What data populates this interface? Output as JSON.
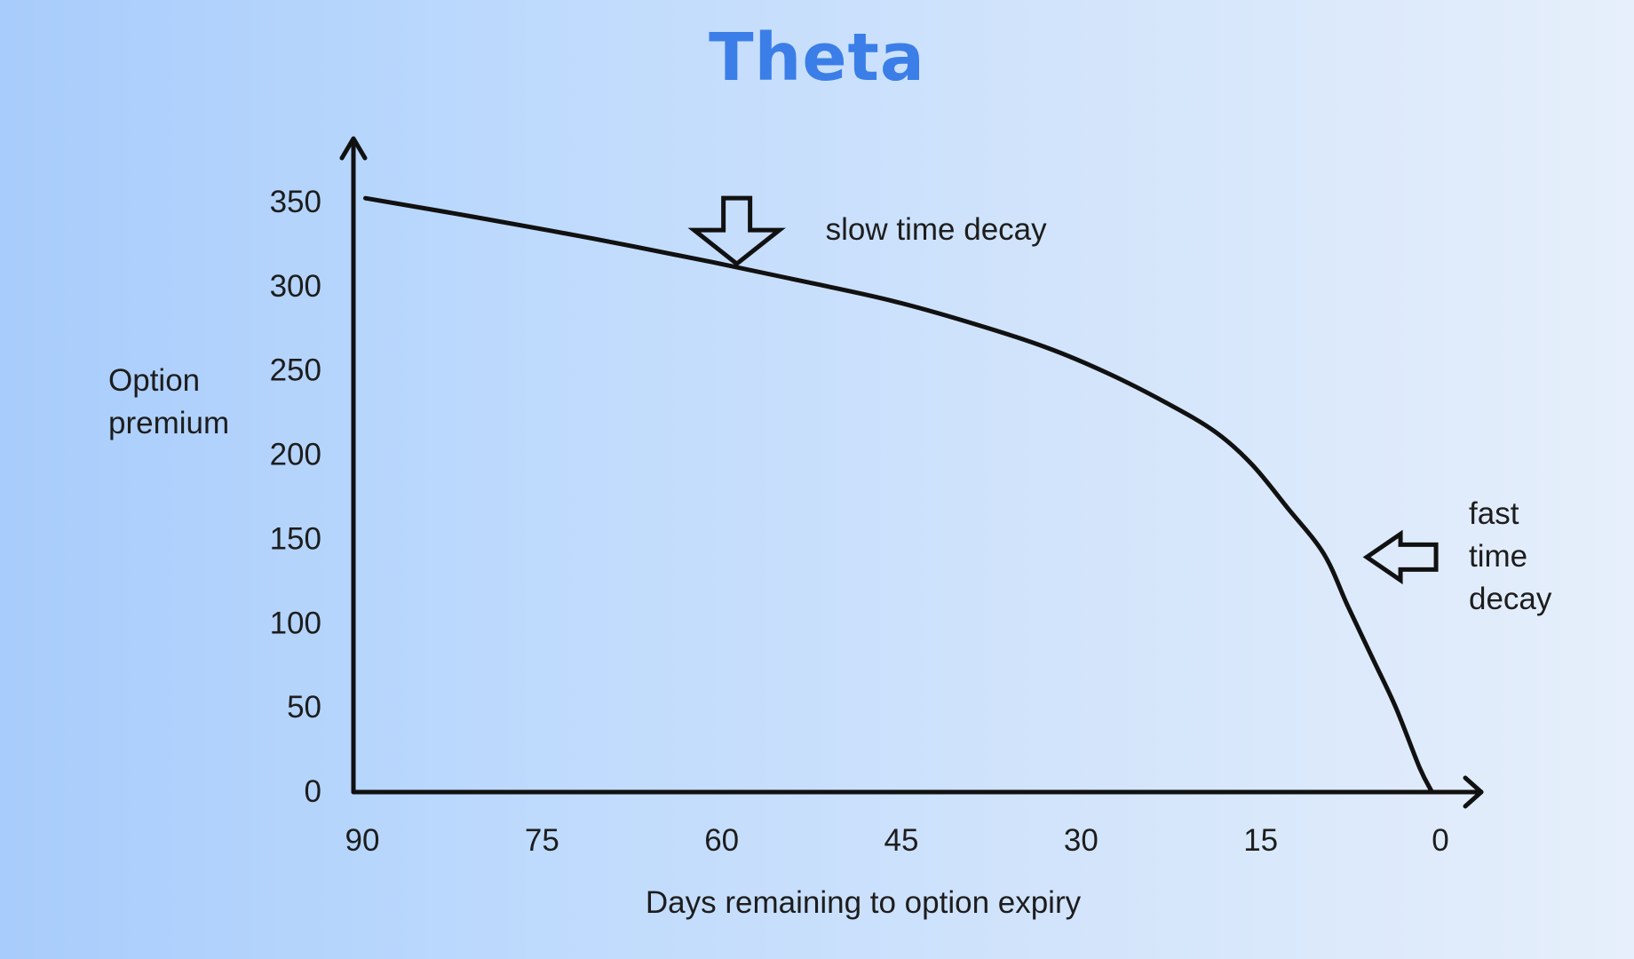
{
  "chart_data": {
    "type": "line",
    "title": "Theta",
    "xlabel": "Days remaining to option expiry",
    "ylabel_lines": [
      "Option",
      "premium"
    ],
    "x_ticks": [
      "90",
      "75",
      "60",
      "45",
      "30",
      "15",
      "0"
    ],
    "y_ticks": [
      "350",
      "300",
      "250",
      "200",
      "150",
      "100",
      "50",
      "0"
    ],
    "xlim": [
      90,
      0
    ],
    "ylim": [
      0,
      350
    ],
    "x_reversed": true,
    "grid": false,
    "legend": "none",
    "series": [
      {
        "x": [
          89,
          80,
          70,
          60,
          52,
          45,
          38,
          32,
          27,
          22,
          18,
          15,
          12,
          9,
          7,
          5,
          3,
          1,
          0
        ],
        "values": [
          352,
          341,
          328,
          314,
          302,
          291,
          277,
          263,
          248,
          230,
          213,
          194,
          168,
          141,
          110,
          80,
          50,
          14,
          0
        ]
      }
    ],
    "annotations": [
      {
        "text_lines": [
          "slow time decay"
        ],
        "arrow": "down",
        "x": 58,
        "y": 312
      },
      {
        "text_lines": [
          "fast",
          "time",
          "decay"
        ],
        "arrow": "left",
        "x": 6,
        "y": 140
      }
    ],
    "colors": {
      "title": "#3b7ee8",
      "line": "#111111",
      "text": "#1d1d1d"
    }
  }
}
